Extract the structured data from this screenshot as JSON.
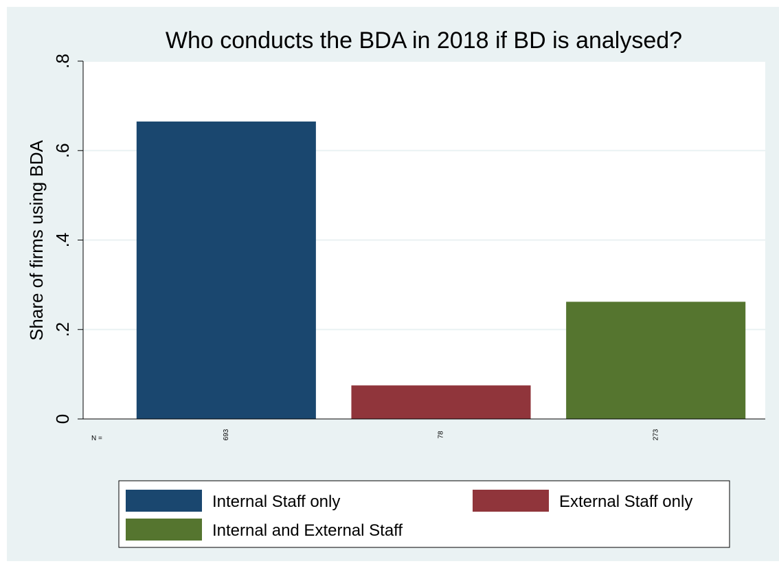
{
  "chart_data": {
    "type": "bar",
    "title": "Who conducts the BDA in 2018 if BD is analysed?",
    "ylabel": "Share of firms using BDA",
    "xlabel": "",
    "ylim": [
      0,
      0.8
    ],
    "yticks": [
      0,
      0.2,
      0.4,
      0.6,
      0.8
    ],
    "ytick_labels": [
      "0",
      ".2",
      ".4",
      ".6",
      ".8"
    ],
    "n_prefix": "N =",
    "grid": true,
    "legend_position": "bottom",
    "series": [
      {
        "name": "Internal Staff only",
        "value": 0.665,
        "n": "693",
        "color": "#1a476f"
      },
      {
        "name": "External Staff only",
        "value": 0.075,
        "n": "78",
        "color": "#90353b"
      },
      {
        "name": "Internal and External Staff",
        "value": 0.262,
        "n": "273",
        "color": "#55752f"
      }
    ]
  }
}
